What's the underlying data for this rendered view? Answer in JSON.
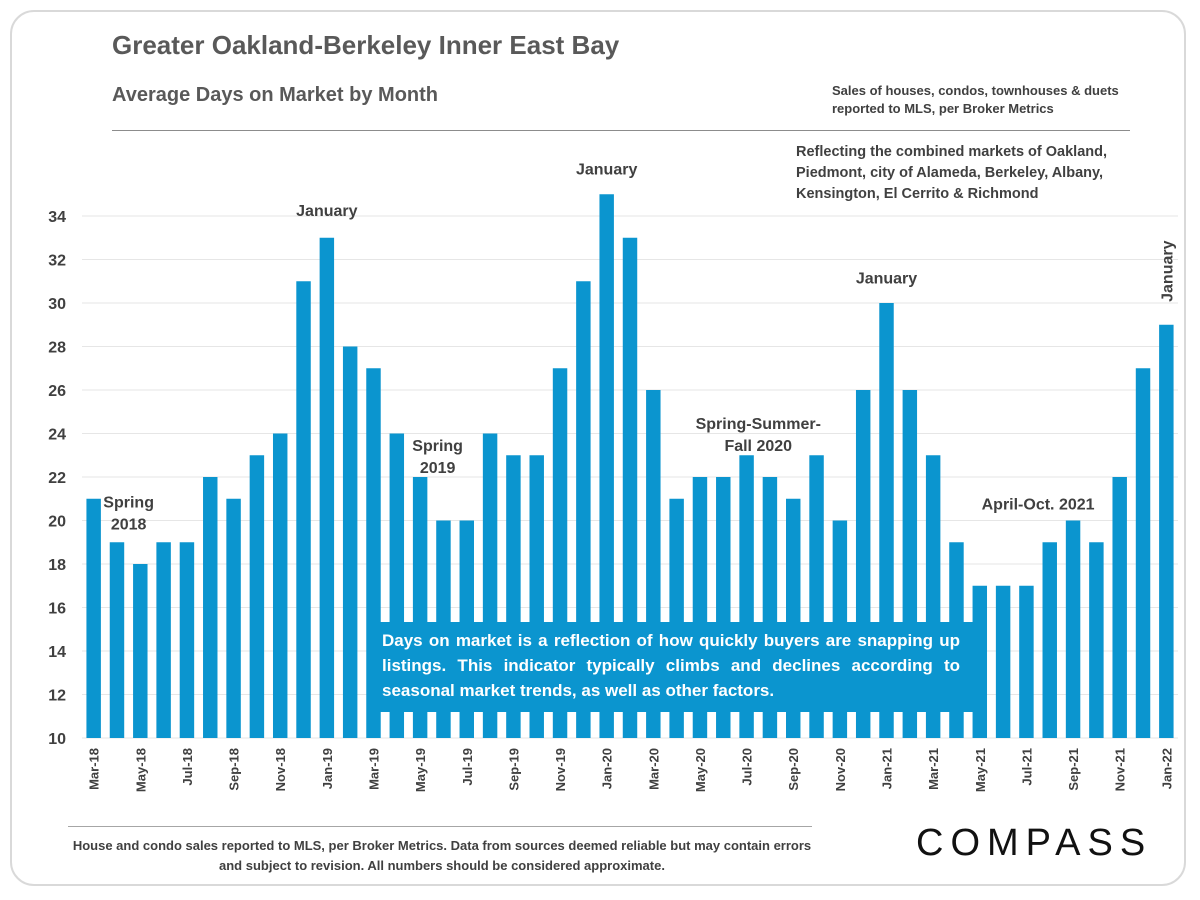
{
  "header": {
    "title": "Greater Oakland-Berkeley Inner East Bay",
    "subtitle": "Average Days on Market by Month",
    "note_source": "Sales of houses, condos, townhouses & duets reported to MLS, per Broker Metrics",
    "note_markets": "Reflecting the combined markets of Oakland, Piedmont, city of Alameda, Berkeley, Albany, Kensington, El Cerrito & Richmond"
  },
  "callout": "Days on market is a reflection of how quickly buyers are snapping up listings. This indicator typically climbs and declines according to seasonal market trends, as well as other factors.",
  "footer": "House and condo sales reported to MLS, per Broker Metrics. Data from sources deemed reliable but may contain errors and subject to revision. All numbers should be considered approximate.",
  "logo": "COMPASS",
  "colors": {
    "bar": "#0b95cf",
    "text": "#595959",
    "grid": "#e6e6e6"
  },
  "chart_data": {
    "type": "bar",
    "title": "Average Days on Market by Month",
    "xlabel": "",
    "ylabel": "",
    "ylim": [
      10,
      35
    ],
    "yticks": [
      10,
      12,
      14,
      16,
      18,
      20,
      22,
      24,
      26,
      28,
      30,
      32,
      34
    ],
    "grid": true,
    "categories": [
      "Mar-18",
      "Apr-18",
      "May-18",
      "Jun-18",
      "Jul-18",
      "Aug-18",
      "Sep-18",
      "Oct-18",
      "Nov-18",
      "Dec-18",
      "Jan-19",
      "Feb-19",
      "Mar-19",
      "Apr-19",
      "May-19",
      "Jun-19",
      "Jul-19",
      "Aug-19",
      "Sep-19",
      "Oct-19",
      "Nov-19",
      "Dec-19",
      "Jan-20",
      "Feb-20",
      "Mar-20",
      "Apr-20",
      "May-20",
      "Jun-20",
      "Jul-20",
      "Aug-20",
      "Sep-20",
      "Oct-20",
      "Nov-20",
      "Dec-20",
      "Jan-21",
      "Feb-21",
      "Mar-21",
      "Apr-21",
      "May-21",
      "Jun-21",
      "Jul-21",
      "Aug-21",
      "Sep-21",
      "Oct-21",
      "Nov-21",
      "Dec-21",
      "Jan-22"
    ],
    "tick_labels": [
      "Mar-18",
      "",
      "May-18",
      "",
      "Jul-18",
      "",
      "Sep-18",
      "",
      "Nov-18",
      "",
      "Jan-19",
      "",
      "Mar-19",
      "",
      "May-19",
      "",
      "Jul-19",
      "",
      "Sep-19",
      "",
      "Nov-19",
      "",
      "Jan-20",
      "",
      "Mar-20",
      "",
      "May-20",
      "",
      "Jul-20",
      "",
      "Sep-20",
      "",
      "Nov-20",
      "",
      "Jan-21",
      "",
      "Mar-21",
      "",
      "May-21",
      "",
      "Jul-21",
      "",
      "Sep-21",
      "",
      "Nov-21",
      "",
      "Jan-22"
    ],
    "values": [
      21,
      19,
      18,
      19,
      19,
      22,
      21,
      23,
      24,
      31,
      33,
      28,
      27,
      24,
      22,
      20,
      20,
      24,
      23,
      23,
      27,
      31,
      35,
      33,
      26,
      21,
      22,
      22,
      23,
      22,
      21,
      23,
      20,
      26,
      30,
      26,
      23,
      19,
      17,
      17,
      17,
      19,
      20,
      19,
      22,
      27,
      29
    ],
    "annotations": [
      {
        "text": "Spring\n2018",
        "index": 1.5,
        "value": 20.6
      },
      {
        "text": "January",
        "index": 10,
        "value": 34.0
      },
      {
        "text": "Spring\n2019",
        "index": 14.75,
        "value": 23.2
      },
      {
        "text": "January",
        "index": 22,
        "value": 35.9
      },
      {
        "text": "Spring-Summer-\nFall 2020",
        "index": 28.5,
        "value": 24.2
      },
      {
        "text": "January",
        "index": 34,
        "value": 30.9
      },
      {
        "text": "April-Oct.  2021",
        "index": 40.5,
        "value": 20.5
      },
      {
        "text": "January",
        "index": 46,
        "value": 29.9,
        "rotated": true
      }
    ]
  }
}
